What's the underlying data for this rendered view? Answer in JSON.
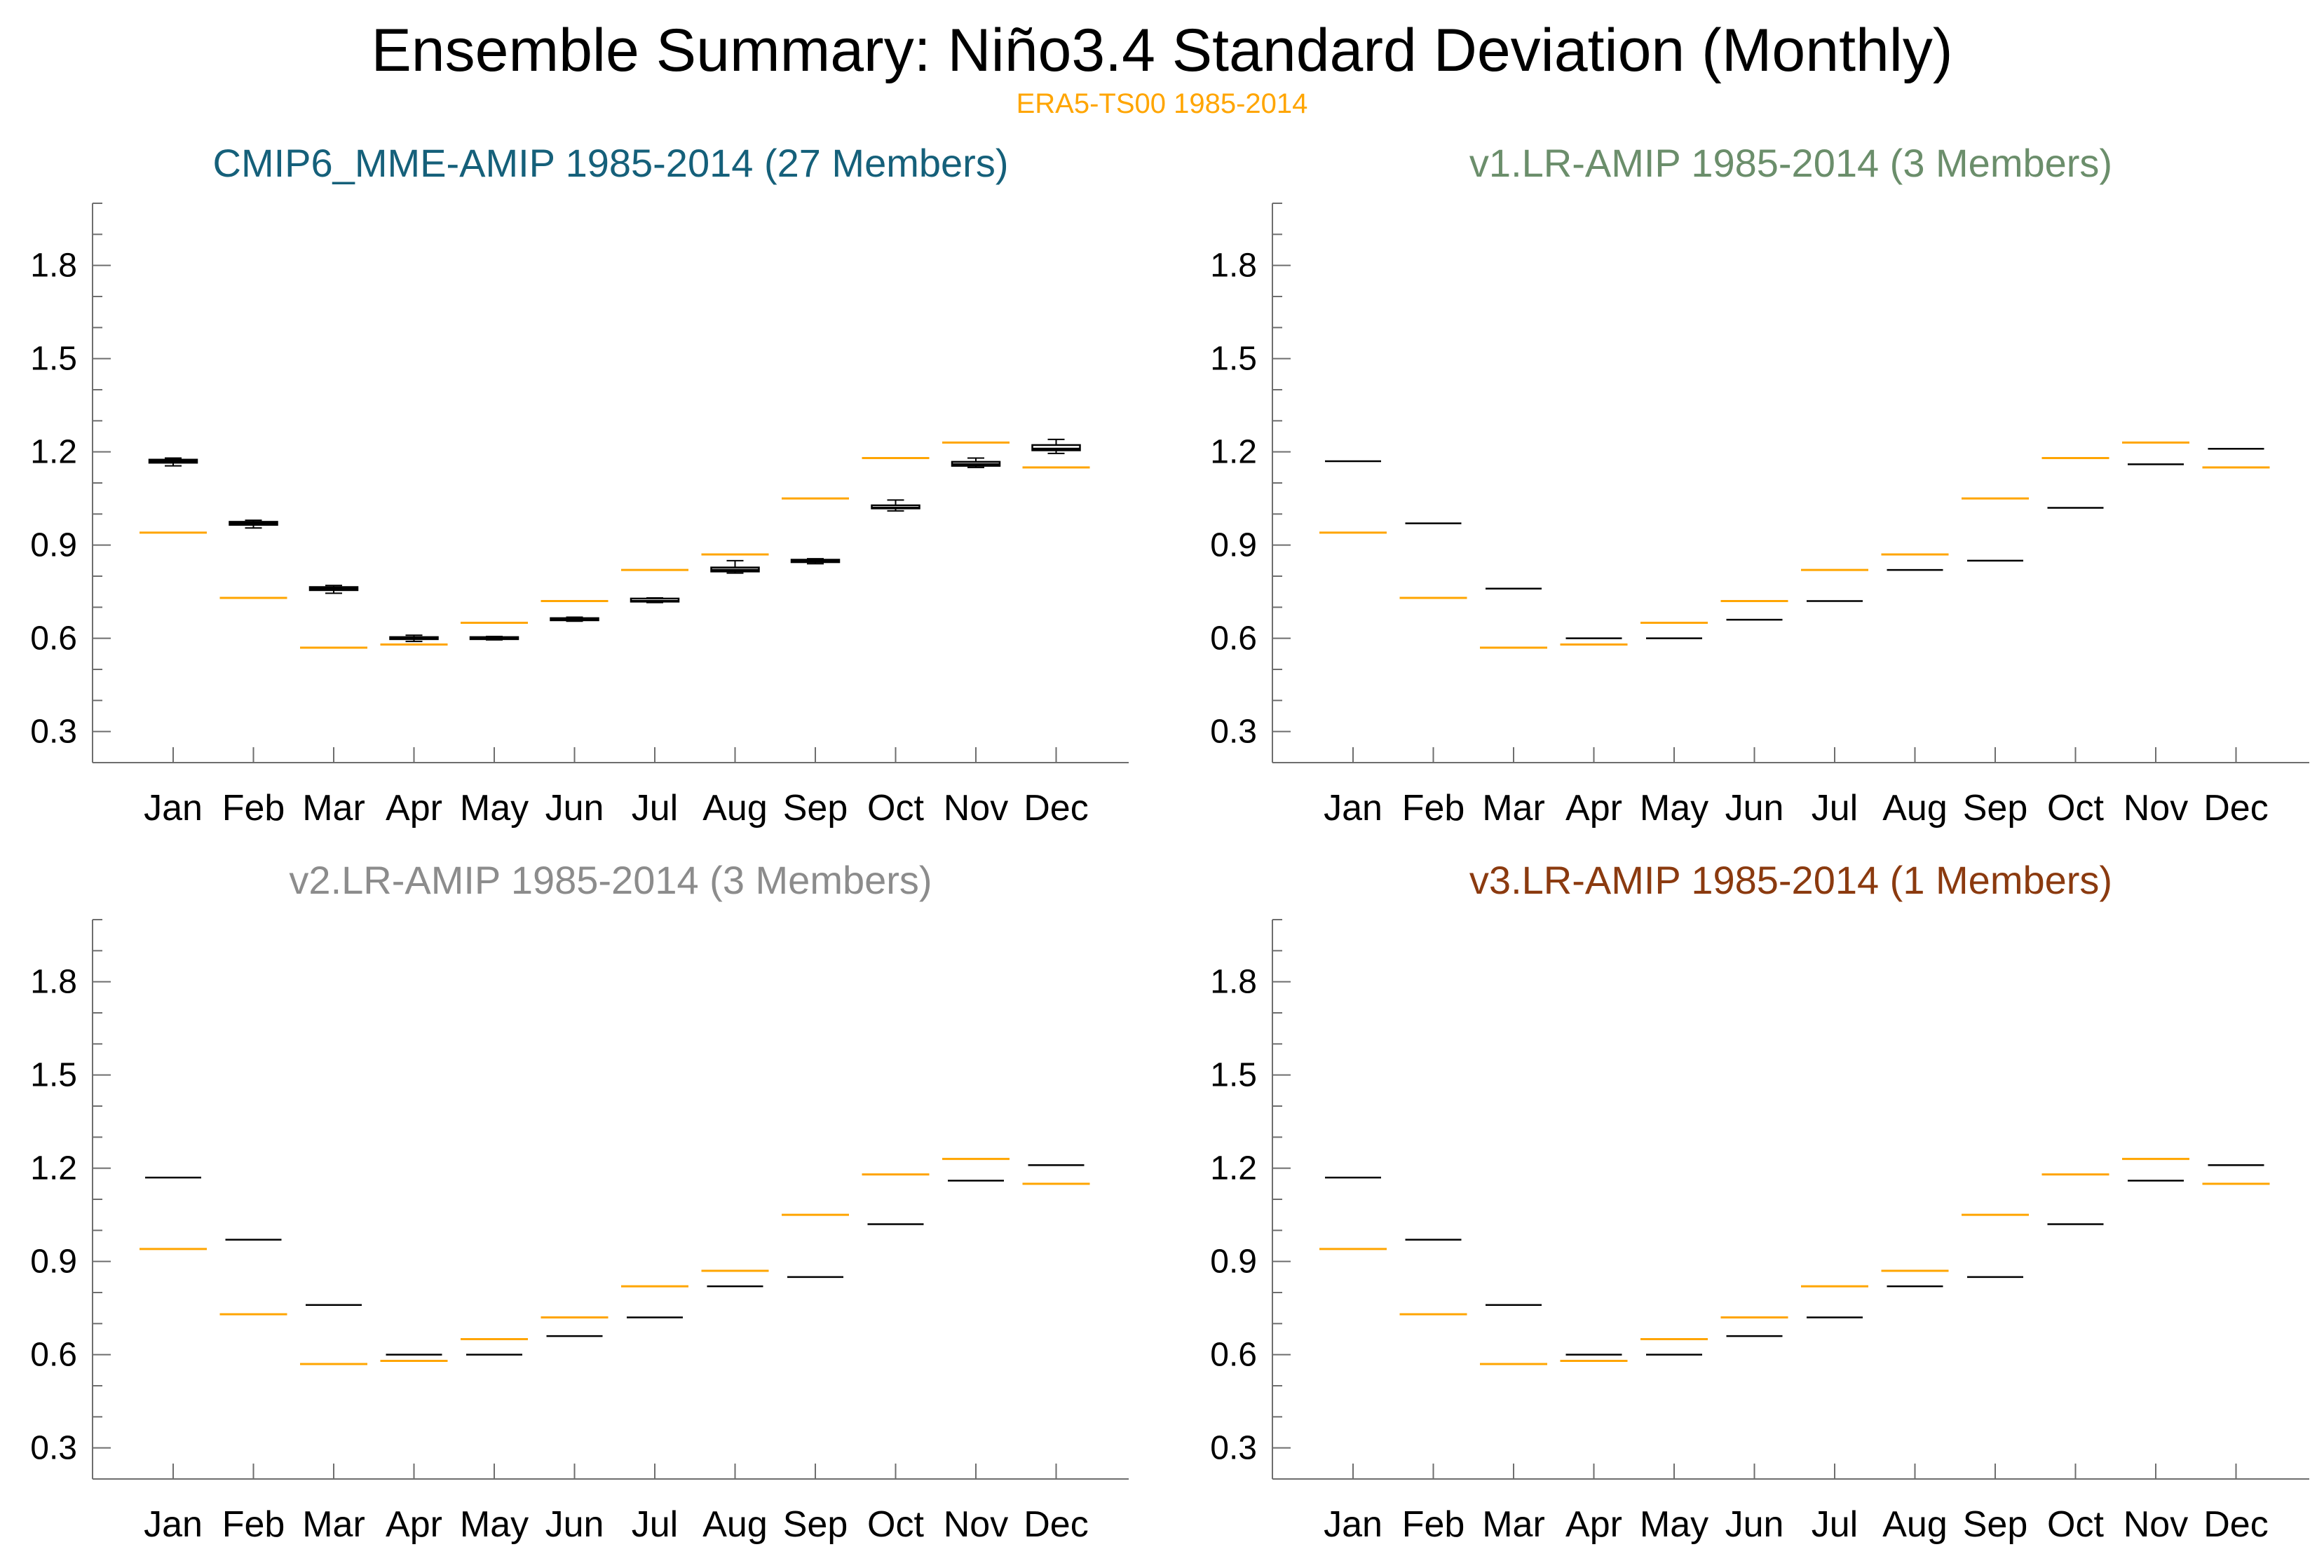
{
  "title": "Ensemble Summary: Niño3.4 Standard Deviation (Monthly)",
  "subtitle": "ERA5-TS00 1985-2014",
  "colors": {
    "reference": "#ffa500",
    "model_box": "#000000",
    "axis": "#6e6e6e"
  },
  "chart_data": [
    {
      "type": "box",
      "title": "CMIP6_MME-AMIP 1985-2014 (27 Members)",
      "title_color": "#15607a",
      "categories": [
        "Jan",
        "Feb",
        "Mar",
        "Apr",
        "May",
        "Jun",
        "Jul",
        "Aug",
        "Sep",
        "Oct",
        "Nov",
        "Dec"
      ],
      "ylim": [
        0.2,
        2.0
      ],
      "yticks": [
        "0.3",
        "0.6",
        "0.9",
        "1.2",
        "1.5",
        "1.8"
      ],
      "reference": {
        "name": "ERA5-TS00 1985-2014",
        "values": [
          0.94,
          0.73,
          0.57,
          0.58,
          0.65,
          0.72,
          0.82,
          0.87,
          1.05,
          1.18,
          1.23,
          1.15
        ]
      },
      "model": {
        "median": [
          1.17,
          0.97,
          0.76,
          0.6,
          0.6,
          0.66,
          0.72,
          0.82,
          0.85,
          1.02,
          1.16,
          1.21
        ],
        "q1": [
          1.165,
          0.965,
          0.755,
          0.598,
          0.598,
          0.658,
          0.718,
          0.815,
          0.845,
          1.018,
          1.155,
          1.205
        ],
        "q3": [
          1.175,
          0.975,
          0.765,
          0.604,
          0.604,
          0.665,
          0.728,
          0.828,
          0.853,
          1.028,
          1.168,
          1.222
        ],
        "min": [
          1.155,
          0.955,
          0.745,
          0.59,
          0.595,
          0.655,
          0.715,
          0.81,
          0.84,
          1.01,
          1.15,
          1.195
        ],
        "max": [
          1.18,
          0.98,
          0.77,
          0.61,
          0.606,
          0.668,
          0.73,
          0.85,
          0.856,
          1.045,
          1.18,
          1.24
        ]
      }
    },
    {
      "type": "box",
      "title": "v1.LR-AMIP 1985-2014 (3 Members)",
      "title_color": "#6b8e6b",
      "categories": [
        "Jan",
        "Feb",
        "Mar",
        "Apr",
        "May",
        "Jun",
        "Jul",
        "Aug",
        "Sep",
        "Oct",
        "Nov",
        "Dec"
      ],
      "ylim": [
        0.2,
        2.0
      ],
      "yticks": [
        "0.3",
        "0.6",
        "0.9",
        "1.2",
        "1.5",
        "1.8"
      ],
      "reference": {
        "name": "ERA5-TS00 1985-2014",
        "values": [
          0.94,
          0.73,
          0.57,
          0.58,
          0.65,
          0.72,
          0.82,
          0.87,
          1.05,
          1.18,
          1.23,
          1.15
        ]
      },
      "model": {
        "median": [
          1.17,
          0.97,
          0.76,
          0.6,
          0.6,
          0.66,
          0.72,
          0.82,
          0.85,
          1.02,
          1.16,
          1.21
        ]
      }
    },
    {
      "type": "box",
      "title": "v2.LR-AMIP 1985-2014 (3 Members)",
      "title_color": "#8c8c8c",
      "categories": [
        "Jan",
        "Feb",
        "Mar",
        "Apr",
        "May",
        "Jun",
        "Jul",
        "Aug",
        "Sep",
        "Oct",
        "Nov",
        "Dec"
      ],
      "ylim": [
        0.2,
        2.0
      ],
      "yticks": [
        "0.3",
        "0.6",
        "0.9",
        "1.2",
        "1.5",
        "1.8"
      ],
      "reference": {
        "name": "ERA5-TS00 1985-2014",
        "values": [
          0.94,
          0.73,
          0.57,
          0.58,
          0.65,
          0.72,
          0.82,
          0.87,
          1.05,
          1.18,
          1.23,
          1.15
        ]
      },
      "model": {
        "median": [
          1.17,
          0.97,
          0.76,
          0.6,
          0.6,
          0.66,
          0.72,
          0.82,
          0.85,
          1.02,
          1.16,
          1.21
        ]
      }
    },
    {
      "type": "box",
      "title": "v3.LR-AMIP 1985-2014 (1 Members)",
      "title_color": "#8b3a0f",
      "categories": [
        "Jan",
        "Feb",
        "Mar",
        "Apr",
        "May",
        "Jun",
        "Jul",
        "Aug",
        "Sep",
        "Oct",
        "Nov",
        "Dec"
      ],
      "ylim": [
        0.2,
        2.0
      ],
      "yticks": [
        "0.3",
        "0.6",
        "0.9",
        "1.2",
        "1.5",
        "1.8"
      ],
      "reference": {
        "name": "ERA5-TS00 1985-2014",
        "values": [
          0.94,
          0.73,
          0.57,
          0.58,
          0.65,
          0.72,
          0.82,
          0.87,
          1.05,
          1.18,
          1.23,
          1.15
        ]
      },
      "model": {
        "median": [
          1.17,
          0.97,
          0.76,
          0.6,
          0.6,
          0.66,
          0.72,
          0.82,
          0.85,
          1.02,
          1.16,
          1.21
        ]
      }
    }
  ]
}
